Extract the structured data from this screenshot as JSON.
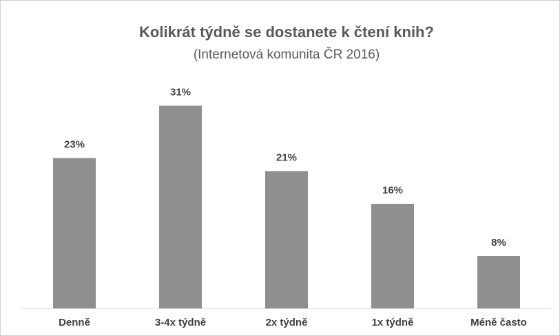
{
  "chart_data": {
    "type": "bar",
    "title": "Kolikrát týdně se dostanete k čtení knih?",
    "subtitle": "(Internetová komunita ČR 2016)",
    "categories": [
      "Denně",
      "3-4x týdně",
      "2x týdně",
      "1x týdně",
      "Méně často"
    ],
    "values": [
      23,
      31,
      21,
      16,
      8
    ],
    "value_labels": [
      "23%",
      "31%",
      "21%",
      "16%",
      "8%"
    ],
    "color": "#8f8f8f"
  }
}
